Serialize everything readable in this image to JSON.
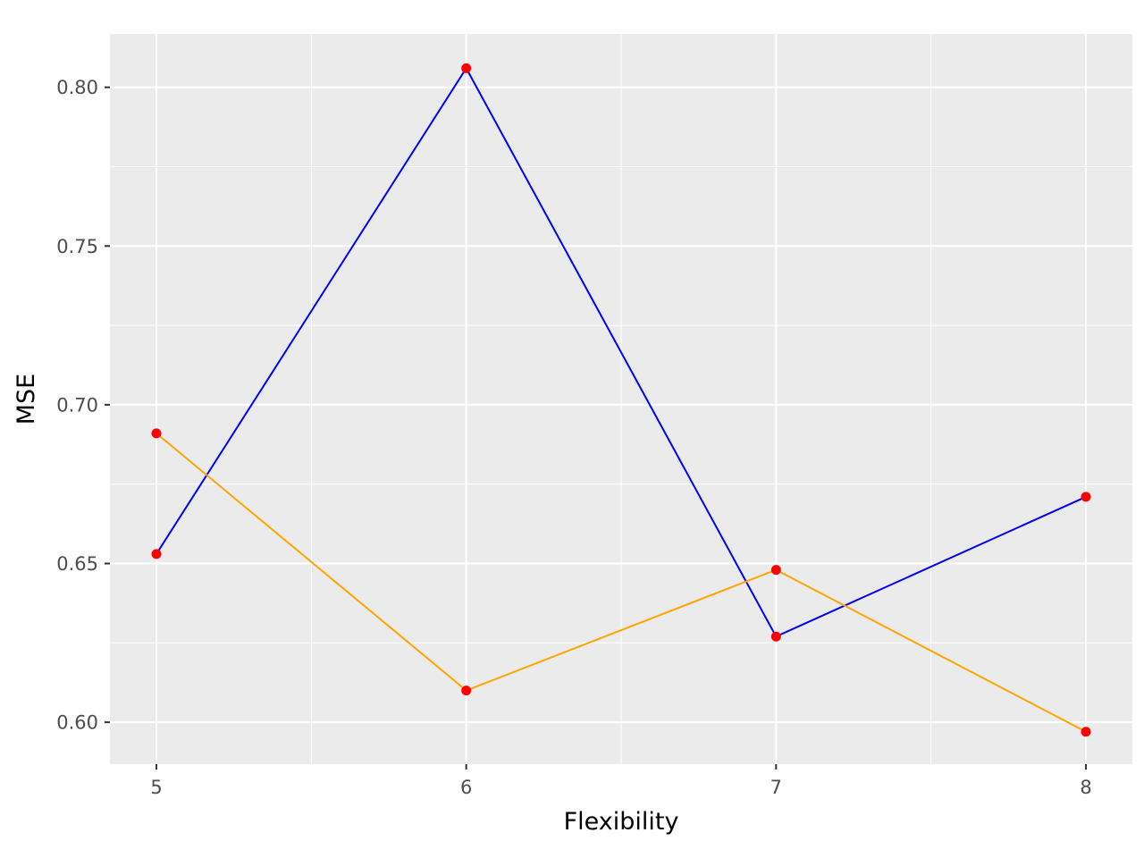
{
  "chart_data": {
    "type": "line",
    "title": "",
    "xlabel": "Flexibility",
    "ylabel": "MSE",
    "x": [
      5,
      6,
      7,
      8
    ],
    "xlim": [
      4.85,
      8.15
    ],
    "ylim": [
      0.5868,
      0.8168
    ],
    "x_ticks": [
      "5",
      "6",
      "7",
      "8"
    ],
    "y_ticks": [
      "0.60",
      "0.65",
      "0.70",
      "0.75",
      "0.80"
    ],
    "grid": true,
    "legend": "none",
    "panel_color": "#ebebeb",
    "point_color": "#ff0000",
    "series": [
      {
        "color": "#0000ff",
        "values": [
          0.653,
          0.806,
          0.627,
          0.671
        ]
      },
      {
        "color": "#ffa500",
        "values": [
          0.691,
          0.61,
          0.648,
          0.597
        ]
      }
    ]
  }
}
